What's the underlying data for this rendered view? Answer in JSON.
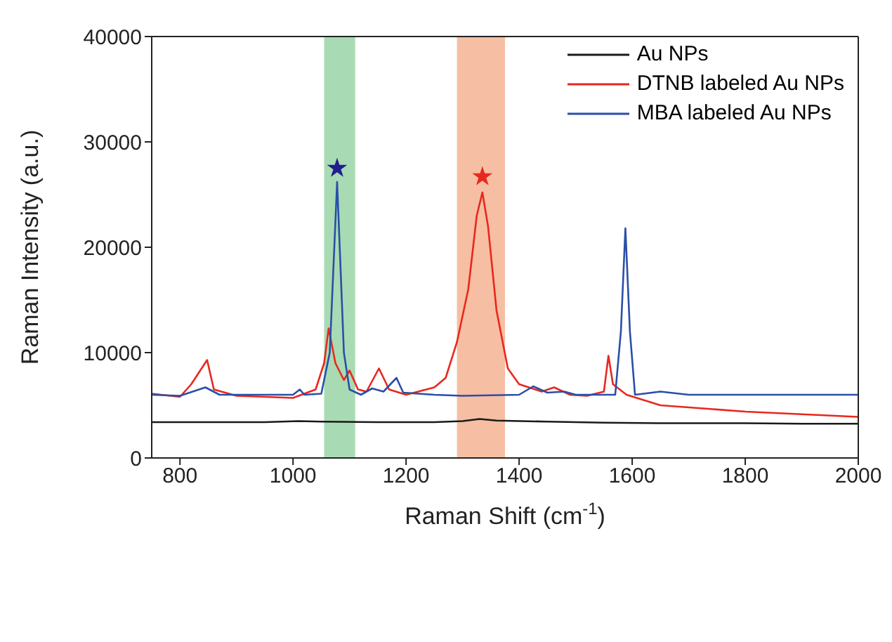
{
  "chart_data": {
    "type": "line",
    "xlabel": "Raman Shift (cm$^{-1}$)",
    "ylabel": "Raman Intensity (a.u.)",
    "xlim": [
      750,
      2000
    ],
    "xticks": [
      800,
      1000,
      1200,
      1400,
      1600,
      1800,
      2000
    ],
    "ylim": [
      0,
      40000
    ],
    "yticks": [
      0,
      10000,
      20000,
      30000,
      40000
    ],
    "grid": false,
    "legend": "top right",
    "marker": "none",
    "line_style": "solid",
    "bands": [
      {
        "axis": "x",
        "from": 1055,
        "to": 1110,
        "color": "#a8dbb3"
      },
      {
        "axis": "x",
        "from": 1290,
        "to": 1375,
        "color": "#f6bea3"
      }
    ],
    "series": [
      {
        "name": "Au NPs",
        "color": "#1a1a1a",
        "x": [
          750,
          850,
          950,
          1010,
          1050,
          1150,
          1250,
          1300,
          1330,
          1360,
          1450,
          1550,
          1650,
          1800,
          1900,
          2000
        ],
        "values": [
          3400,
          3400,
          3400,
          3500,
          3450,
          3400,
          3400,
          3500,
          3700,
          3550,
          3450,
          3350,
          3300,
          3300,
          3250,
          3250
        ]
      },
      {
        "name": "DTNB labeled Au NPs",
        "color": "#e8281e",
        "x": [
          750,
          800,
          820,
          848,
          860,
          900,
          1000,
          1040,
          1055,
          1063,
          1075,
          1090,
          1100,
          1115,
          1130,
          1152,
          1170,
          1200,
          1250,
          1270,
          1290,
          1310,
          1325,
          1335,
          1345,
          1360,
          1380,
          1400,
          1440,
          1462,
          1490,
          1520,
          1550,
          1558,
          1566,
          1590,
          1650,
          1800,
          2000
        ],
        "values": [
          6100,
          5800,
          7000,
          9300,
          6500,
          5900,
          5700,
          6500,
          9000,
          12300,
          9000,
          7400,
          8300,
          6500,
          6300,
          8500,
          6500,
          6000,
          6700,
          7600,
          11000,
          16000,
          23000,
          25200,
          22000,
          14000,
          8500,
          7000,
          6300,
          6700,
          6000,
          5900,
          6300,
          9700,
          7000,
          6000,
          5000,
          4400,
          3900
        ]
      },
      {
        "name": "MBA labeled Au NPs",
        "color": "#2a4fa8",
        "x": [
          750,
          800,
          845,
          870,
          1000,
          1012,
          1020,
          1050,
          1065,
          1078,
          1090,
          1100,
          1120,
          1140,
          1160,
          1183,
          1195,
          1250,
          1300,
          1400,
          1425,
          1450,
          1480,
          1500,
          1570,
          1580,
          1588,
          1596,
          1605,
          1650,
          1700,
          2000
        ],
        "values": [
          6000,
          5900,
          6700,
          6000,
          6000,
          6500,
          6000,
          6100,
          10000,
          26200,
          10000,
          6500,
          6000,
          6600,
          6300,
          7600,
          6200,
          6000,
          5900,
          6000,
          6800,
          6200,
          6300,
          6000,
          6000,
          12000,
          21800,
          12000,
          6000,
          6300,
          6000,
          6000
        ]
      },
      {
        "type": "scatter",
        "marker": "star",
        "color": "#1f1f8f",
        "x": [
          1078
        ],
        "values": [
          27500
        ]
      },
      {
        "type": "scatter",
        "marker": "star",
        "color": "#e8281e",
        "x": [
          1335
        ],
        "values": [
          26700
        ]
      }
    ]
  }
}
